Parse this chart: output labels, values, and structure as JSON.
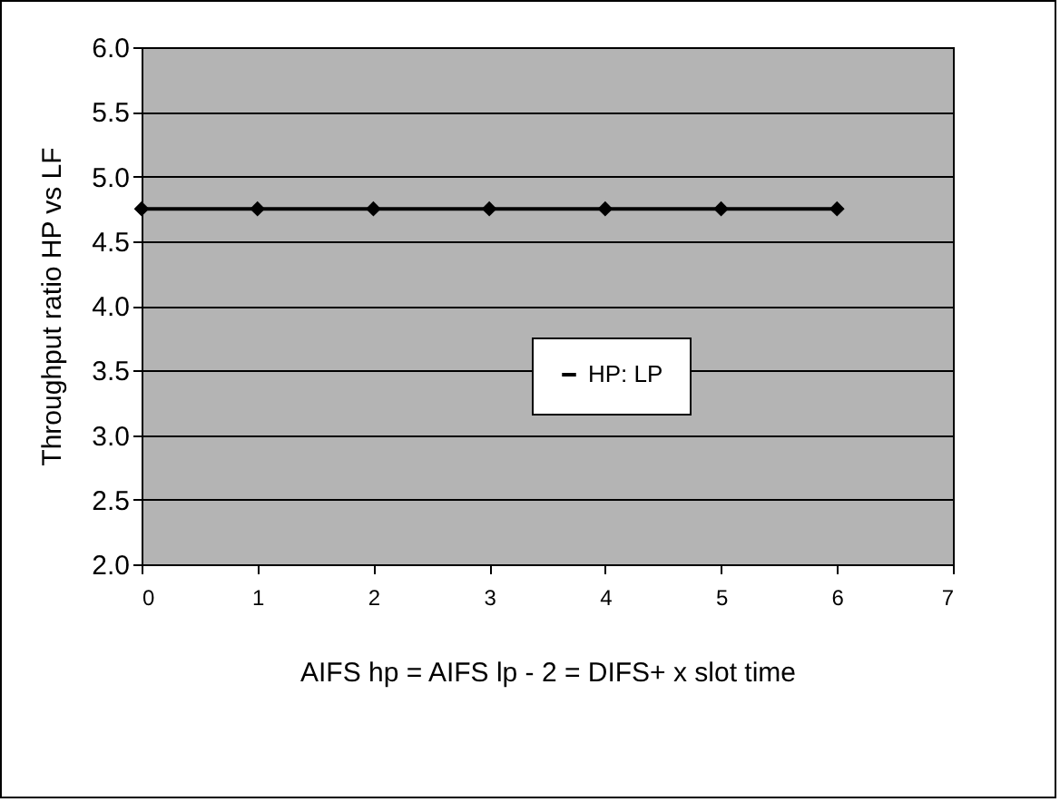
{
  "chart_data": {
    "type": "line",
    "xlabel": "AIFS hp  = AIFS lp - 2 = DIFS+ x slot time",
    "ylabel": "Throughput ratio HP vs LF",
    "x": [
      0,
      1,
      2,
      3,
      4,
      5,
      6
    ],
    "series": [
      {
        "name": "HP: LP",
        "color": "#000000",
        "values": [
          4.75,
          4.75,
          4.75,
          4.75,
          4.75,
          4.75,
          4.75
        ]
      }
    ],
    "xlim": [
      0,
      7
    ],
    "xticks": [
      0,
      1,
      2,
      3,
      4,
      5,
      6,
      7
    ],
    "ylim": [
      2,
      6
    ],
    "yticks": [
      {
        "value": 2,
        "label": "2.0"
      },
      {
        "value": 2.5,
        "label": "2.5"
      },
      {
        "value": 3,
        "label": "3.0"
      },
      {
        "value": 3.5,
        "label": "3.5"
      },
      {
        "value": 4,
        "label": "4.0"
      },
      {
        "value": 4.5,
        "label": "4.5"
      },
      {
        "value": 5,
        "label": "5.0"
      },
      {
        "value": 5.5,
        "label": "5.5"
      },
      {
        "value": 6,
        "label": "6.0"
      }
    ],
    "grid": "y",
    "legend": "center right",
    "marker": "diamond",
    "line_style": "solid"
  }
}
